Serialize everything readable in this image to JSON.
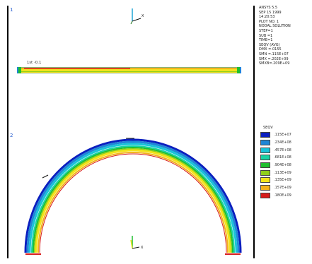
{
  "windows": {
    "top_label": "1",
    "bottom_label": "2",
    "bar_label": "1st  ·0.1",
    "triad_top_axis": "X",
    "triad_bottom_axis": "X"
  },
  "legend": {
    "header_lines": [
      "ANSYS 5.5",
      "SEP 15 1999",
      "14:20:53",
      "PLOT NO. 1",
      "NODAL SOLUTION",
      "STEP=1",
      "SUB =1",
      "TIME=1",
      "SEQV     (AVG)",
      "DMX =.0155",
      "SMN =.115E+07",
      "SMX =.202E+09",
      "SMXB=.209E+09"
    ],
    "scale_title": "SEQV",
    "colors": [
      "#0b1fbf",
      "#1f86d6",
      "#19c3d9",
      "#17d3a4",
      "#1fbf2f",
      "#8fcf1a",
      "#f3e31c",
      "#f3b21c",
      "#d71c1c"
    ],
    "values": [
      ".115E+07",
      ".234E+08",
      ".457E+08",
      ".681E+08",
      ".904E+08",
      ".113E+09",
      ".135E+09",
      ".157E+09",
      ".180E+09"
    ]
  }
}
